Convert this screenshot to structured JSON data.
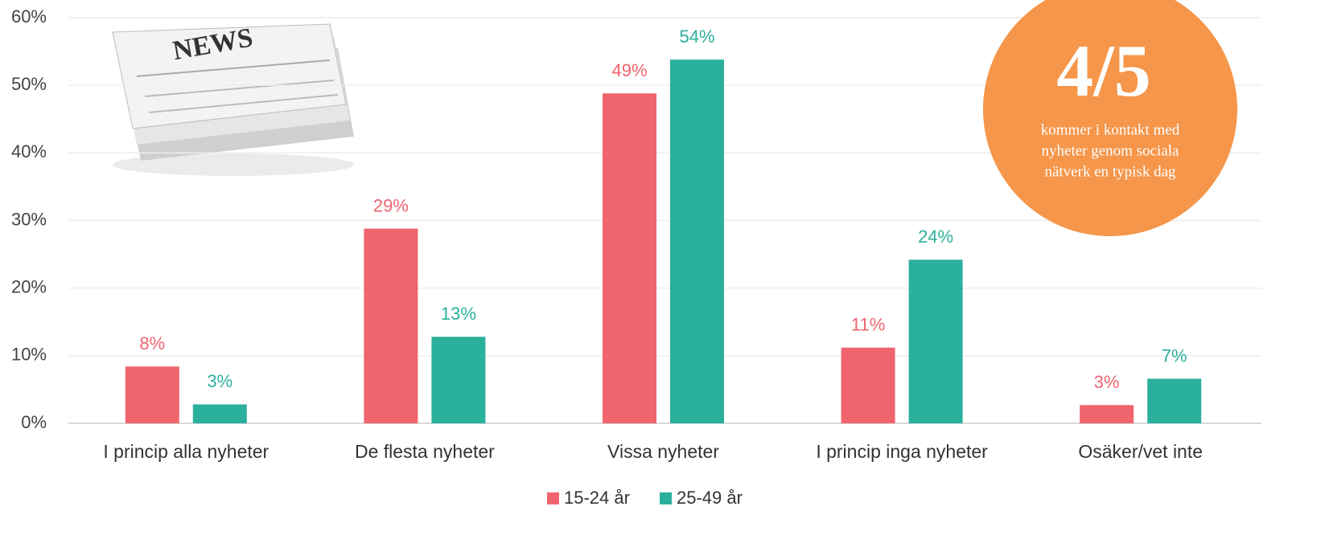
{
  "chart_data": {
    "type": "bar",
    "categories": [
      "I princip alla nyheter",
      "De flesta nyheter",
      "Vissa nyheter",
      "I princip inga nyheter",
      "Osäker/vet inte"
    ],
    "series": [
      {
        "name": "15-24 år",
        "color": "#f0646e",
        "values": [
          8.4,
          28.8,
          48.8,
          11.2,
          2.7
        ],
        "value_labels": [
          "8%",
          "29%",
          "49%",
          "11%",
          "3%"
        ]
      },
      {
        "name": "25-49 år",
        "color": "#2bb09c",
        "values": [
          2.8,
          12.8,
          53.8,
          24.2,
          6.6
        ],
        "value_labels": [
          "3%",
          "13%",
          "54%",
          "24%",
          "7%"
        ]
      }
    ],
    "ylim": [
      0,
      60
    ],
    "yticks": [
      {
        "value": 0,
        "label": "0%"
      },
      {
        "value": 10,
        "label": "10%"
      },
      {
        "value": 20,
        "label": "20%"
      },
      {
        "value": 30,
        "label": "30%"
      },
      {
        "value": 40,
        "label": "40%"
      },
      {
        "value": 50,
        "label": "50%"
      },
      {
        "value": 60,
        "label": "60%"
      }
    ],
    "grid": true,
    "legend": "bottom",
    "annotation": {
      "big": "4/5",
      "lines": [
        "kommer i kontakt med",
        "nyheter genom sociala",
        "nätverk en typisk dag"
      ],
      "color": "#f5964a"
    },
    "image_text": "NEWS"
  }
}
